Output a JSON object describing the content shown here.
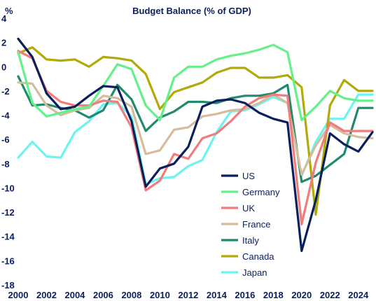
{
  "chart_data": {
    "type": "line",
    "title": "Budget Balance (% of GDP)",
    "ylabel": "%",
    "xlabel": "",
    "xlim": [
      2000,
      2025
    ],
    "ylim": [
      -18,
      4
    ],
    "x_ticks": [
      "2000",
      "2002",
      "2004",
      "2006",
      "2008",
      "2010",
      "2012",
      "2014",
      "2016",
      "2018",
      "2020",
      "2022",
      "2024"
    ],
    "y_ticks": [
      "4",
      "2",
      "0",
      "-2",
      "-4",
      "-6",
      "-8",
      "-10",
      "-12",
      "-14",
      "-16",
      "-18"
    ],
    "grid": false,
    "legend_position": "lower-center",
    "x": [
      2000,
      2001,
      2002,
      2003,
      2004,
      2005,
      2006,
      2007,
      2008,
      2009,
      2010,
      2011,
      2012,
      2013,
      2014,
      2015,
      2016,
      2017,
      2018,
      2019,
      2020,
      2021,
      2022,
      2023,
      2024,
      2025
    ],
    "series": [
      {
        "name": "US",
        "color": "#0b1f5c",
        "values": [
          2.3,
          0.8,
          -2.2,
          -3.5,
          -3.3,
          -2.4,
          -1.6,
          -1.7,
          -4.5,
          -9.9,
          -8.4,
          -8.0,
          -6.6,
          -3.3,
          -2.8,
          -2.7,
          -3.0,
          -3.8,
          -4.3,
          -4.6,
          -15.2,
          -11.0,
          -5.5,
          -6.4,
          -7.0,
          -5.4
        ]
      },
      {
        "name": "Germany",
        "color": "#66f08a",
        "values": [
          1.2,
          -3.0,
          -4.1,
          -3.8,
          -3.5,
          -3.3,
          -1.6,
          0.2,
          -0.2,
          -3.2,
          -4.4,
          -0.9,
          0.0,
          0.0,
          0.6,
          0.9,
          1.1,
          1.4,
          1.8,
          1.2,
          -4.4,
          -3.3,
          -2.0,
          -2.6,
          -2.8,
          -2.8
        ]
      },
      {
        "name": "UK",
        "color": "#f27b7b",
        "values": [
          1.3,
          0.7,
          -2.0,
          -2.9,
          -3.2,
          -3.2,
          -2.8,
          -2.9,
          -5.0,
          -10.2,
          -9.4,
          -7.2,
          -7.6,
          -5.9,
          -5.5,
          -4.5,
          -3.3,
          -2.6,
          -2.3,
          -2.4,
          -13.0,
          -7.9,
          -4.6,
          -5.3,
          -5.3,
          -5.3
        ]
      },
      {
        "name": "France",
        "color": "#d6bb9c",
        "values": [
          -1.3,
          -1.4,
          -3.2,
          -4.0,
          -3.6,
          -3.4,
          -2.4,
          -2.6,
          -3.3,
          -7.2,
          -6.9,
          -5.2,
          -5.0,
          -4.1,
          -3.9,
          -3.6,
          -3.5,
          -3.0,
          -2.3,
          -3.0,
          -8.9,
          -6.5,
          -4.8,
          -5.5,
          -5.8,
          -5.9
        ]
      },
      {
        "name": "Italy",
        "color": "#1f8a6c",
        "values": [
          -0.8,
          -3.2,
          -3.1,
          -3.4,
          -3.6,
          -4.2,
          -3.6,
          -1.5,
          -2.7,
          -5.3,
          -4.2,
          -3.7,
          -2.9,
          -2.9,
          -3.0,
          -2.6,
          -2.4,
          -2.4,
          -2.2,
          -1.5,
          -9.5,
          -9.0,
          -8.1,
          -7.2,
          -3.4,
          -3.4
        ]
      },
      {
        "name": "Canada",
        "color": "#b0ab0a",
        "values": [
          1.1,
          1.6,
          0.6,
          0.5,
          0.6,
          0.0,
          0.8,
          0.7,
          0.5,
          -0.6,
          -3.5,
          -2.1,
          -1.7,
          -1.3,
          -0.5,
          -0.1,
          -0.1,
          -0.9,
          -0.9,
          -0.7,
          -1.7,
          -12.2,
          -3.2,
          -1.1,
          -2.0,
          -2.0
        ]
      },
      {
        "name": "Japan",
        "color": "#6ef4f0",
        "values": [
          -7.5,
          -6.2,
          -7.4,
          -7.5,
          -5.4,
          -4.5,
          -3.1,
          -3.0,
          -4.1,
          -9.7,
          -9.2,
          -9.1,
          -8.2,
          -7.7,
          -5.4,
          -3.7,
          -3.6,
          -3.1,
          -2.5,
          -3.0,
          -9.0,
          -6.2,
          -4.3,
          -4.3,
          -2.3,
          -2.3
        ]
      }
    ]
  }
}
